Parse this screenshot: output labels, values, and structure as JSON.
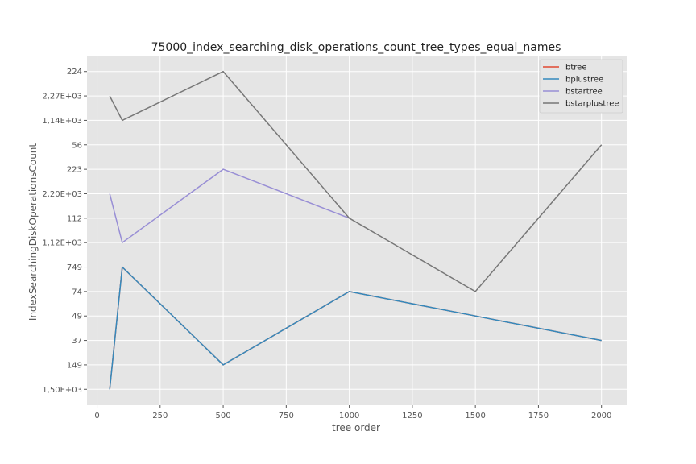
{
  "chart_data": {
    "type": "line",
    "title": "75000_index_searching_disk_operations_count_tree_types_equal_names",
    "xlabel": "tree order",
    "ylabel": "IndexSearchingDiskOperationsCount",
    "xlim": [
      -40,
      2100
    ],
    "x_ticks": [
      0,
      250,
      500,
      750,
      1000,
      1250,
      1500,
      1750,
      2000
    ],
    "y_categories": [
      "1,50E+03",
      "149",
      "37",
      "49",
      "74",
      "749",
      "1,12E+03",
      "112",
      "2,20E+03",
      "223",
      "56",
      "1,14E+03",
      "2,27E+03",
      "224"
    ],
    "grid": true,
    "legend_position": "top-right",
    "series": [
      {
        "name": "btree",
        "color": "#E24A33",
        "x": [
          50,
          100,
          500,
          1000,
          1500,
          2000
        ],
        "y": [
          "1,50E+03",
          "749",
          "149",
          "74",
          "49",
          "37"
        ]
      },
      {
        "name": "bplustree",
        "color": "#348ABD",
        "x": [
          50,
          100,
          500,
          1000,
          1500,
          2000
        ],
        "y": [
          "1,50E+03",
          "749",
          "149",
          "74",
          "49",
          "37"
        ]
      },
      {
        "name": "bstartree",
        "color": "#988ED5",
        "x": [
          50,
          100,
          500,
          1000
        ],
        "y": [
          "2,20E+03",
          "1,12E+03",
          "223",
          "112"
        ]
      },
      {
        "name": "bstarplustree",
        "color": "#777777",
        "x": [
          50,
          100,
          500,
          1000,
          1500,
          2000
        ],
        "y": [
          "2,27E+03",
          "1,14E+03",
          "224",
          "112",
          "74",
          "56"
        ]
      }
    ]
  }
}
